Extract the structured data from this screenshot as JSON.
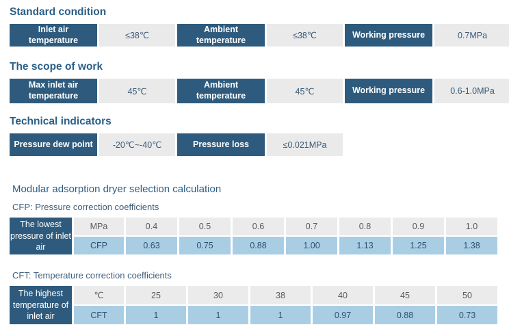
{
  "colors": {
    "dark_cell_bg": "#2e5b7d",
    "gray_cell_bg": "#eaeaea",
    "light_blue_cell_bg": "#a9cee3",
    "heading_text": "#2a5f88",
    "value_text": "#3c5a77",
    "white_text": "#ffffff"
  },
  "sections": [
    {
      "heading": "Standard condition",
      "pairs": [
        {
          "label": "Inlet air temperature",
          "value": "≤38℃"
        },
        {
          "label": "Ambient temperature",
          "value": "≤38℃"
        },
        {
          "label": "Working pressure",
          "value": "0.7MPa"
        }
      ]
    },
    {
      "heading": "The scope of work",
      "pairs": [
        {
          "label": "Max inlet air temperature",
          "value": "45℃"
        },
        {
          "label": "Ambient temperature",
          "value": "45℃"
        },
        {
          "label": "Working pressure",
          "value": "0.6-1.0MPa"
        }
      ]
    },
    {
      "heading": "Technical indicators",
      "pairs": [
        {
          "label": "Pressure dew point",
          "value": "-20℃~-40℃"
        },
        {
          "label": "Pressure loss",
          "value": "≤0.021MPa"
        }
      ]
    }
  ],
  "selection": {
    "title": "Modular adsorption dryer selection calculation",
    "cfp": {
      "subtitle": "CFP: Pressure correction coefficients",
      "row_header": "The lowest pressure of inlet air",
      "unit_label": "MPa",
      "coef_label": "CFP",
      "units": [
        "0.4",
        "0.5",
        "0.6",
        "0.7",
        "0.8",
        "0.9",
        "1.0"
      ],
      "coefs": [
        "0.63",
        "0.75",
        "0.88",
        "1.00",
        "1.13",
        "1.25",
        "1.38"
      ]
    },
    "cft": {
      "subtitle": "CFT: Temperature correction coefficients",
      "row_header": "The highest temperature of inlet air",
      "unit_label": "℃",
      "coef_label": "CFT",
      "units": [
        "25",
        "30",
        "38",
        "40",
        "45",
        "50"
      ],
      "coefs": [
        "1",
        "1",
        "1",
        "0.97",
        "0.88",
        "0.73"
      ]
    }
  }
}
